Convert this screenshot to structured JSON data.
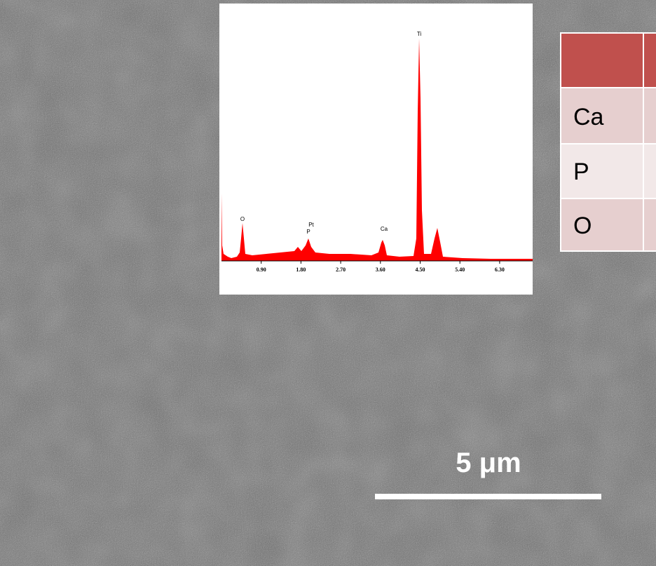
{
  "spectrum": {
    "xticks": [
      {
        "value": 0.9,
        "label": "0.90"
      },
      {
        "value": 1.8,
        "label": "1.80"
      },
      {
        "value": 2.7,
        "label": "2.70"
      },
      {
        "value": 3.6,
        "label": "3.60"
      },
      {
        "value": 4.5,
        "label": "4.50"
      },
      {
        "value": 5.4,
        "label": "5.40"
      },
      {
        "value": 6.3,
        "label": "6.30"
      }
    ],
    "peak_labels": {
      "o": "O",
      "pt": "Pt",
      "p": "P",
      "ca": "Ca",
      "ti": "Ti"
    }
  },
  "table": {
    "rows": [
      [
        "Ca"
      ],
      [
        "P"
      ],
      [
        "O"
      ]
    ]
  },
  "scale_bar": {
    "label": "5 μm"
  }
}
